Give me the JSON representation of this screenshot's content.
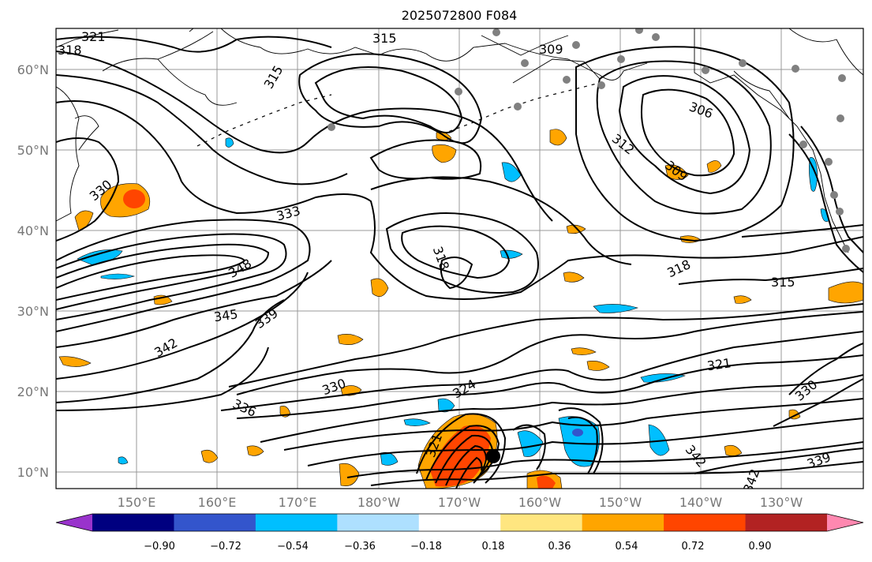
{
  "title": "2025072800 F084",
  "lat_labels": [
    "60°N",
    "50°N",
    "40°N",
    "30°N",
    "20°N",
    "10°N"
  ],
  "lon_labels": [
    "150°E",
    "160°E",
    "170°E",
    "180°W",
    "170°W",
    "160°W",
    "150°W",
    "140°W",
    "130°W"
  ],
  "contour_labels": [
    {
      "text": "321"
    },
    {
      "text": "318"
    },
    {
      "text": "315"
    },
    {
      "text": "315"
    },
    {
      "text": "309"
    },
    {
      "text": "306"
    },
    {
      "text": "312"
    },
    {
      "text": "309"
    },
    {
      "text": "330"
    },
    {
      "text": "333"
    },
    {
      "text": "318"
    },
    {
      "text": "348"
    },
    {
      "text": "318"
    },
    {
      "text": "315"
    },
    {
      "text": "345"
    },
    {
      "text": "339"
    },
    {
      "text": "342"
    },
    {
      "text": "321"
    },
    {
      "text": "330"
    },
    {
      "text": "324"
    },
    {
      "text": "330"
    },
    {
      "text": "336"
    },
    {
      "text": "321"
    },
    {
      "text": "342"
    },
    {
      "text": "339"
    },
    {
      "text": "342"
    }
  ],
  "colorbar": {
    "ticks": [
      "−0.90",
      "−0.72",
      "−0.54",
      "−0.36",
      "−0.18",
      "0.18",
      "0.36",
      "0.54",
      "0.72",
      "0.90"
    ],
    "colors": [
      "#9933cc",
      "#000080",
      "#3355cc",
      "#00bfff",
      "#aee0ff",
      "#ffffff",
      "#ffe680",
      "#ffa500",
      "#ff4500",
      "#b22222",
      "#ff88b0"
    ]
  }
}
